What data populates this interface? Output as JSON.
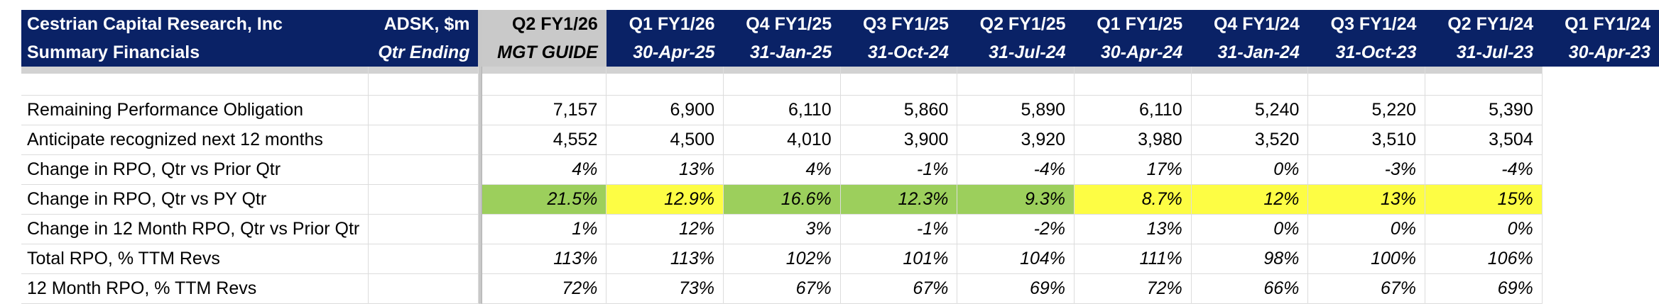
{
  "header": {
    "company": "Cestrian Capital Research, Inc",
    "ticker": "ADSK, $m",
    "subtitle": "Summary Financials",
    "qtr_ending": "Qtr Ending",
    "guide_top": "Q2 FY1/26",
    "guide_bottom": "MGT GUIDE",
    "quarters": [
      {
        "q": "Q1 FY1/26",
        "date": "30-Apr-25"
      },
      {
        "q": "Q4 FY1/25",
        "date": "31-Jan-25"
      },
      {
        "q": "Q3 FY1/25",
        "date": "31-Oct-24"
      },
      {
        "q": "Q2 FY1/25",
        "date": "31-Jul-24"
      },
      {
        "q": "Q1 FY1/25",
        "date": "30-Apr-24"
      },
      {
        "q": "Q4 FY1/24",
        "date": "31-Jan-24"
      },
      {
        "q": "Q3 FY1/24",
        "date": "31-Oct-23"
      },
      {
        "q": "Q2 FY1/24",
        "date": "31-Jul-23"
      },
      {
        "q": "Q1 FY1/24",
        "date": "30-Apr-23"
      }
    ]
  },
  "rows": [
    {
      "label": "Remaining Performance Obligation",
      "italic": false,
      "values": [
        "7,157",
        "6,900",
        "6,110",
        "5,860",
        "5,890",
        "6,110",
        "5,240",
        "5,220",
        "5,390"
      ]
    },
    {
      "label": "Anticipate recognized next 12 months",
      "italic": false,
      "values": [
        "4,552",
        "4,500",
        "4,010",
        "3,900",
        "3,920",
        "3,980",
        "3,520",
        "3,510",
        "3,504"
      ]
    },
    {
      "label": "Change in RPO, Qtr vs Prior Qtr",
      "italic": true,
      "values": [
        "4%",
        "13%",
        "4%",
        "-1%",
        "-4%",
        "17%",
        "0%",
        "-3%",
        "-4%"
      ]
    },
    {
      "label": "Change in RPO, Qtr vs PY Qtr",
      "italic": true,
      "values": [
        "21.5%",
        "12.9%",
        "16.6%",
        "12.3%",
        "9.3%",
        "8.7%",
        "12%",
        "13%",
        "15%"
      ],
      "highlight": [
        "green",
        "yellow",
        "green",
        "green",
        "green",
        "yellow",
        "yellow",
        "yellow",
        "yellow"
      ]
    },
    {
      "label": "Change in 12 Month RPO, Qtr vs Prior Qtr",
      "italic": true,
      "values": [
        "1%",
        "12%",
        "3%",
        "-1%",
        "-2%",
        "13%",
        "0%",
        "0%",
        "0%"
      ]
    },
    {
      "label": "Total RPO, % TTM Revs",
      "italic": true,
      "values": [
        "113%",
        "113%",
        "102%",
        "101%",
        "104%",
        "111%",
        "98%",
        "100%",
        "106%"
      ]
    },
    {
      "label": "12 Month RPO, % TTM Revs",
      "italic": true,
      "values": [
        "72%",
        "73%",
        "67%",
        "67%",
        "69%",
        "72%",
        "66%",
        "67%",
        "69%"
      ]
    }
  ],
  "colors": {
    "header_bg": "#0a2266",
    "guide_bg": "#c9c9c9",
    "green": "#9ccf5c",
    "yellow": "#fdfd44"
  }
}
